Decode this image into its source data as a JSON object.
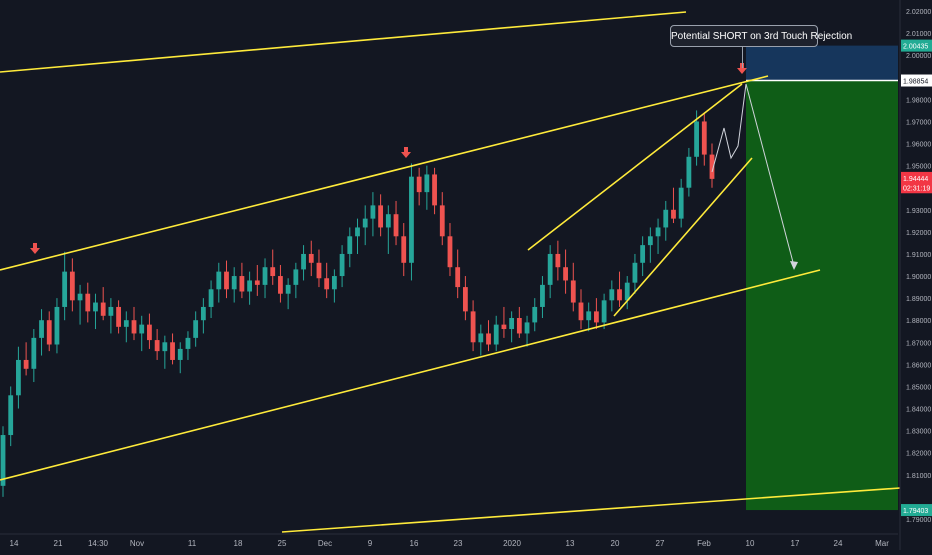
{
  "chart_data": {
    "type": "candlestick",
    "symbol_note": "",
    "y_axis": {
      "ticks": [
        2.02,
        2.01,
        2.0,
        1.98,
        1.97,
        1.96,
        1.95,
        1.93,
        1.92,
        1.91,
        1.9,
        1.89,
        1.88,
        1.87,
        1.86,
        1.85,
        1.84,
        1.83,
        1.82,
        1.81,
        1.79
      ],
      "tick_labels": [
        "2.02000",
        "2.01000",
        "2.00000",
        "1.98000",
        "1.97000",
        "1.96000",
        "1.95000",
        "1.93000",
        "1.92000",
        "1.91000",
        "1.90000",
        "1.89000",
        "1.88000",
        "1.87000",
        "1.86000",
        "1.85000",
        "1.84000",
        "1.83000",
        "1.82000",
        "1.81000",
        "1.79000"
      ],
      "range": [
        1.785,
        2.025
      ]
    },
    "x_axis": {
      "tick_labels": [
        "14",
        "21",
        "14:30",
        "Nov",
        "11",
        "18",
        "25",
        "Dec",
        "9",
        "16",
        "23",
        "2020",
        "13",
        "20",
        "27",
        "Feb",
        "10",
        "17",
        "24",
        "Mar"
      ]
    },
    "price_labels": [
      {
        "text": "2.00435",
        "value": 2.00435,
        "color": "#22ab94"
      },
      {
        "text": "1.98854",
        "value": 1.98854,
        "color": "#ffffff"
      },
      {
        "text": "1.94444",
        "value": 1.94444,
        "color": "#f23645"
      },
      {
        "text": "02:31:19",
        "value": 1.9402,
        "color": "#f23645"
      },
      {
        "text": "1.79403",
        "value": 1.79403,
        "color": "#22ab94"
      }
    ],
    "position": {
      "side": "short",
      "entry": 1.98854,
      "stop": 2.00435,
      "target": 1.79403
    },
    "annotation": "Potential SHORT on 3rd Touch Rejection",
    "candles": [
      [
        1.805,
        1.832,
        1.8,
        1.828
      ],
      [
        1.828,
        1.85,
        1.823,
        1.846
      ],
      [
        1.846,
        1.868,
        1.84,
        1.862
      ],
      [
        1.862,
        1.87,
        1.855,
        1.858
      ],
      [
        1.858,
        1.876,
        1.852,
        1.872
      ],
      [
        1.872,
        1.885,
        1.864,
        1.88
      ],
      [
        1.88,
        1.884,
        1.866,
        1.869
      ],
      [
        1.869,
        1.89,
        1.865,
        1.886
      ],
      [
        1.886,
        1.911,
        1.88,
        1.902
      ],
      [
        1.902,
        1.908,
        1.884,
        1.889
      ],
      [
        1.889,
        1.896,
        1.878,
        1.892
      ],
      [
        1.892,
        1.897,
        1.879,
        1.884
      ],
      [
        1.884,
        1.892,
        1.876,
        1.888
      ],
      [
        1.888,
        1.895,
        1.88,
        1.882
      ],
      [
        1.882,
        1.89,
        1.874,
        1.886
      ],
      [
        1.886,
        1.889,
        1.874,
        1.877
      ],
      [
        1.877,
        1.884,
        1.87,
        1.88
      ],
      [
        1.88,
        1.886,
        1.871,
        1.874
      ],
      [
        1.874,
        1.882,
        1.866,
        1.878
      ],
      [
        1.878,
        1.883,
        1.867,
        1.871
      ],
      [
        1.871,
        1.876,
        1.862,
        1.866
      ],
      [
        1.866,
        1.873,
        1.858,
        1.87
      ],
      [
        1.87,
        1.874,
        1.86,
        1.862
      ],
      [
        1.862,
        1.87,
        1.856,
        1.867
      ],
      [
        1.867,
        1.875,
        1.862,
        1.872
      ],
      [
        1.872,
        1.884,
        1.868,
        1.88
      ],
      [
        1.88,
        1.89,
        1.874,
        1.886
      ],
      [
        1.886,
        1.898,
        1.881,
        1.894
      ],
      [
        1.894,
        1.906,
        1.888,
        1.902
      ],
      [
        1.902,
        1.907,
        1.89,
        1.894
      ],
      [
        1.894,
        1.904,
        1.888,
        1.9
      ],
      [
        1.9,
        1.906,
        1.89,
        1.893
      ],
      [
        1.893,
        1.902,
        1.887,
        1.898
      ],
      [
        1.898,
        1.905,
        1.891,
        1.896
      ],
      [
        1.896,
        1.908,
        1.89,
        1.904
      ],
      [
        1.904,
        1.912,
        1.896,
        1.9
      ],
      [
        1.9,
        1.905,
        1.888,
        1.892
      ],
      [
        1.892,
        1.899,
        1.885,
        1.896
      ],
      [
        1.896,
        1.906,
        1.89,
        1.903
      ],
      [
        1.903,
        1.914,
        1.898,
        1.91
      ],
      [
        1.91,
        1.916,
        1.9,
        1.906
      ],
      [
        1.906,
        1.912,
        1.895,
        1.899
      ],
      [
        1.899,
        1.906,
        1.89,
        1.894
      ],
      [
        1.894,
        1.903,
        1.888,
        1.9
      ],
      [
        1.9,
        1.914,
        1.895,
        1.91
      ],
      [
        1.91,
        1.922,
        1.904,
        1.918
      ],
      [
        1.918,
        1.926,
        1.91,
        1.922
      ],
      [
        1.922,
        1.932,
        1.914,
        1.926
      ],
      [
        1.926,
        1.938,
        1.918,
        1.932
      ],
      [
        1.932,
        1.937,
        1.918,
        1.922
      ],
      [
        1.922,
        1.932,
        1.91,
        1.928
      ],
      [
        1.928,
        1.934,
        1.914,
        1.918
      ],
      [
        1.918,
        1.924,
        1.9,
        1.906
      ],
      [
        1.906,
        1.951,
        1.898,
        1.945
      ],
      [
        1.945,
        1.949,
        1.932,
        1.938
      ],
      [
        1.938,
        1.95,
        1.93,
        1.946
      ],
      [
        1.946,
        1.949,
        1.928,
        1.932
      ],
      [
        1.932,
        1.938,
        1.914,
        1.918
      ],
      [
        1.918,
        1.924,
        1.9,
        1.904
      ],
      [
        1.904,
        1.912,
        1.89,
        1.895
      ],
      [
        1.895,
        1.9,
        1.88,
        1.884
      ],
      [
        1.884,
        1.889,
        1.866,
        1.87
      ],
      [
        1.87,
        1.878,
        1.864,
        1.874
      ],
      [
        1.874,
        1.88,
        1.866,
        1.869
      ],
      [
        1.869,
        1.882,
        1.866,
        1.878
      ],
      [
        1.878,
        1.886,
        1.872,
        1.876
      ],
      [
        1.876,
        1.884,
        1.87,
        1.881
      ],
      [
        1.881,
        1.886,
        1.872,
        1.874
      ],
      [
        1.874,
        1.882,
        1.868,
        1.879
      ],
      [
        1.879,
        1.89,
        1.875,
        1.886
      ],
      [
        1.886,
        1.9,
        1.881,
        1.896
      ],
      [
        1.896,
        1.914,
        1.89,
        1.91
      ],
      [
        1.91,
        1.916,
        1.898,
        1.904
      ],
      [
        1.904,
        1.912,
        1.892,
        1.898
      ],
      [
        1.898,
        1.906,
        1.884,
        1.888
      ],
      [
        1.888,
        1.894,
        1.876,
        1.88
      ],
      [
        1.88,
        1.888,
        1.875,
        1.884
      ],
      [
        1.884,
        1.89,
        1.876,
        1.879
      ],
      [
        1.879,
        1.892,
        1.876,
        1.889
      ],
      [
        1.889,
        1.898,
        1.884,
        1.894
      ],
      [
        1.894,
        1.902,
        1.886,
        1.889
      ],
      [
        1.889,
        1.9,
        1.885,
        1.897
      ],
      [
        1.897,
        1.91,
        1.892,
        1.906
      ],
      [
        1.906,
        1.918,
        1.9,
        1.914
      ],
      [
        1.914,
        1.922,
        1.906,
        1.918
      ],
      [
        1.918,
        1.926,
        1.91,
        1.922
      ],
      [
        1.922,
        1.934,
        1.916,
        1.93
      ],
      [
        1.93,
        1.94,
        1.924,
        1.926
      ],
      [
        1.926,
        1.944,
        1.922,
        1.94
      ],
      [
        1.94,
        1.958,
        1.936,
        1.954
      ],
      [
        1.954,
        1.975,
        1.95,
        1.97
      ],
      [
        1.97,
        1.974,
        1.95,
        1.955
      ],
      [
        1.955,
        1.96,
        1.94,
        1.944
      ]
    ]
  }
}
